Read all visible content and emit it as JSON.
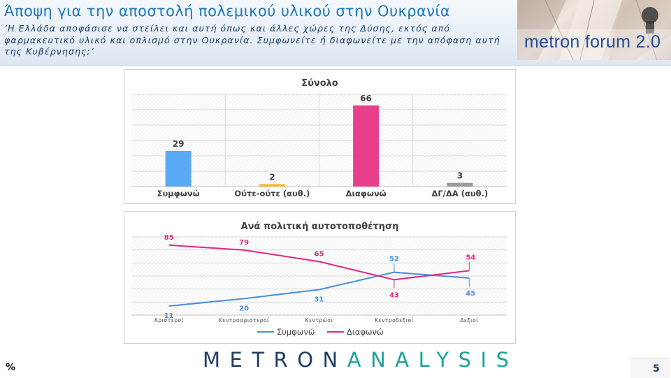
{
  "header": {
    "title": "Άποψη για την αποστολή πολεμικού υλικού στην Ουκρανία",
    "subtitle_lines": [
      "‘Η Ελλάδα αποφάσισε να στείλει και αυτή όπως και άλλες χώρες της Δύσης, εκτός από",
      "φαρμακευτικό υλικό και οπλισμό στην Ουκρανία. Συμφωνείτε ή διαφωνείτε με την απόφαση αυτή",
      "της Κυβέρνησης;’"
    ],
    "logo_text": "metron forum 2.0"
  },
  "chart_data": [
    {
      "type": "bar",
      "title": "Σύνολο",
      "categories": [
        "Συμφωνώ",
        "Ούτε-ούτε (αυθ.)",
        "Διαφωνώ",
        "ΔΓ/ΔΑ (αυθ.)"
      ],
      "values": [
        29,
        2,
        66,
        3
      ],
      "colors": [
        "#5aa9f5",
        "#f5b733",
        "#e83e8c",
        "#9b9b9b"
      ],
      "ylim": [
        0,
        75
      ],
      "grid": true,
      "legend": "none"
    },
    {
      "type": "line",
      "title": "Ανά πολιτική αυτοτοποθέτηση",
      "categories": [
        "Αριστεροί",
        "Κεντροαριστεροί",
        "Κεντρώοι",
        "Κεντροδεξιοί",
        "Δεξιοί"
      ],
      "series": [
        {
          "name": "Συμφωνώ",
          "values": [
            11,
            20,
            31,
            52,
            45
          ],
          "color": "#4a90d9"
        },
        {
          "name": "Διαφωνώ",
          "values": [
            85,
            79,
            65,
            43,
            54
          ],
          "color": "#e0297f"
        }
      ],
      "ylim": [
        0,
        95
      ],
      "grid": true,
      "legend": "bottom"
    }
  ],
  "footer": {
    "unit_symbol": "%",
    "brand_part1": "METRON",
    "brand_part2": "ANALYSIS",
    "page_number": "5"
  }
}
